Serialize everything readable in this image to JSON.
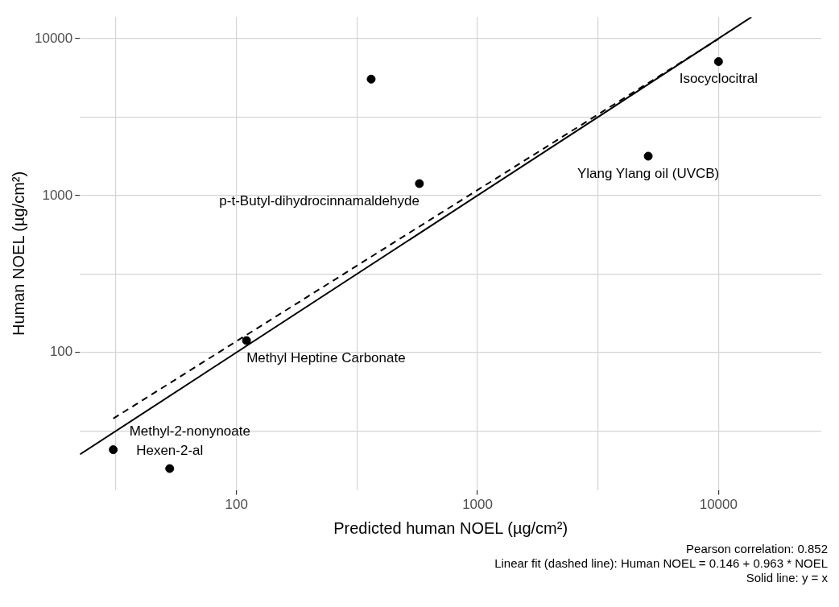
{
  "chart_data": {
    "type": "scatter",
    "xlabel": "Predicted human NOEL (µg/cm²)",
    "ylabel": "Human NOEL (µg/cm²)",
    "log": "xy",
    "grid": true,
    "legend": false,
    "marker": "circle",
    "xlim": [
      22.4,
      26700
    ],
    "ylim": [
      13.3,
      13700
    ],
    "xticks": [
      {
        "value": 31.6,
        "label": null
      },
      100,
      {
        "value": 316,
        "label": null
      },
      1000,
      {
        "value": 3162,
        "label": null
      },
      10000
    ],
    "yticks": [
      {
        "value": 31.6,
        "label": null
      },
      100,
      {
        "value": 316,
        "label": null
      },
      1000,
      {
        "value": 3162,
        "label": null
      },
      10000
    ],
    "series": [
      {
        "type": "scatter",
        "color": "#000000",
        "x": [
          362,
          574,
          10000,
          5110,
          110,
          30.8,
          52.8
        ],
        "values": [
          5510,
          1190,
          7130,
          1780,
          119,
          24,
          18.2
        ]
      },
      {
        "type": "line",
        "color": "#000000",
        "line_style": "solid",
        "marker": "none",
        "x": [
          22.4,
          13700
        ],
        "values": [
          22.4,
          13700
        ]
      },
      {
        "type": "line",
        "color": "#000000",
        "line_style": "dashed",
        "marker": "none",
        "x": [
          30.8,
          10000
        ],
        "values": [
          37.9,
          9950
        ]
      }
    ],
    "annotations": [
      {
        "text": "p-t-Butyl-dihydrocinnamaldehyde",
        "x": 574,
        "y": 1190
      },
      {
        "text": "Isocyclocitral",
        "x": 10000,
        "y": 7130
      },
      {
        "text": "Ylang Ylang oil (UVCB)",
        "x": 5110,
        "y": 1780
      },
      {
        "text": "Methyl Heptine Carbonate",
        "x": 110,
        "y": 119
      },
      {
        "text": "Methyl-2-nonynoate",
        "x": 30.8,
        "y": 24
      },
      {
        "text": "Hexen-2-al",
        "x": 52.8,
        "y": 18.2
      },
      "Pearson correlation: 0.852",
      "Linear fit (dashed line): Human NOEL = 0.146 + 0.963 * NOEL",
      "Solid line: y = x"
    ]
  }
}
